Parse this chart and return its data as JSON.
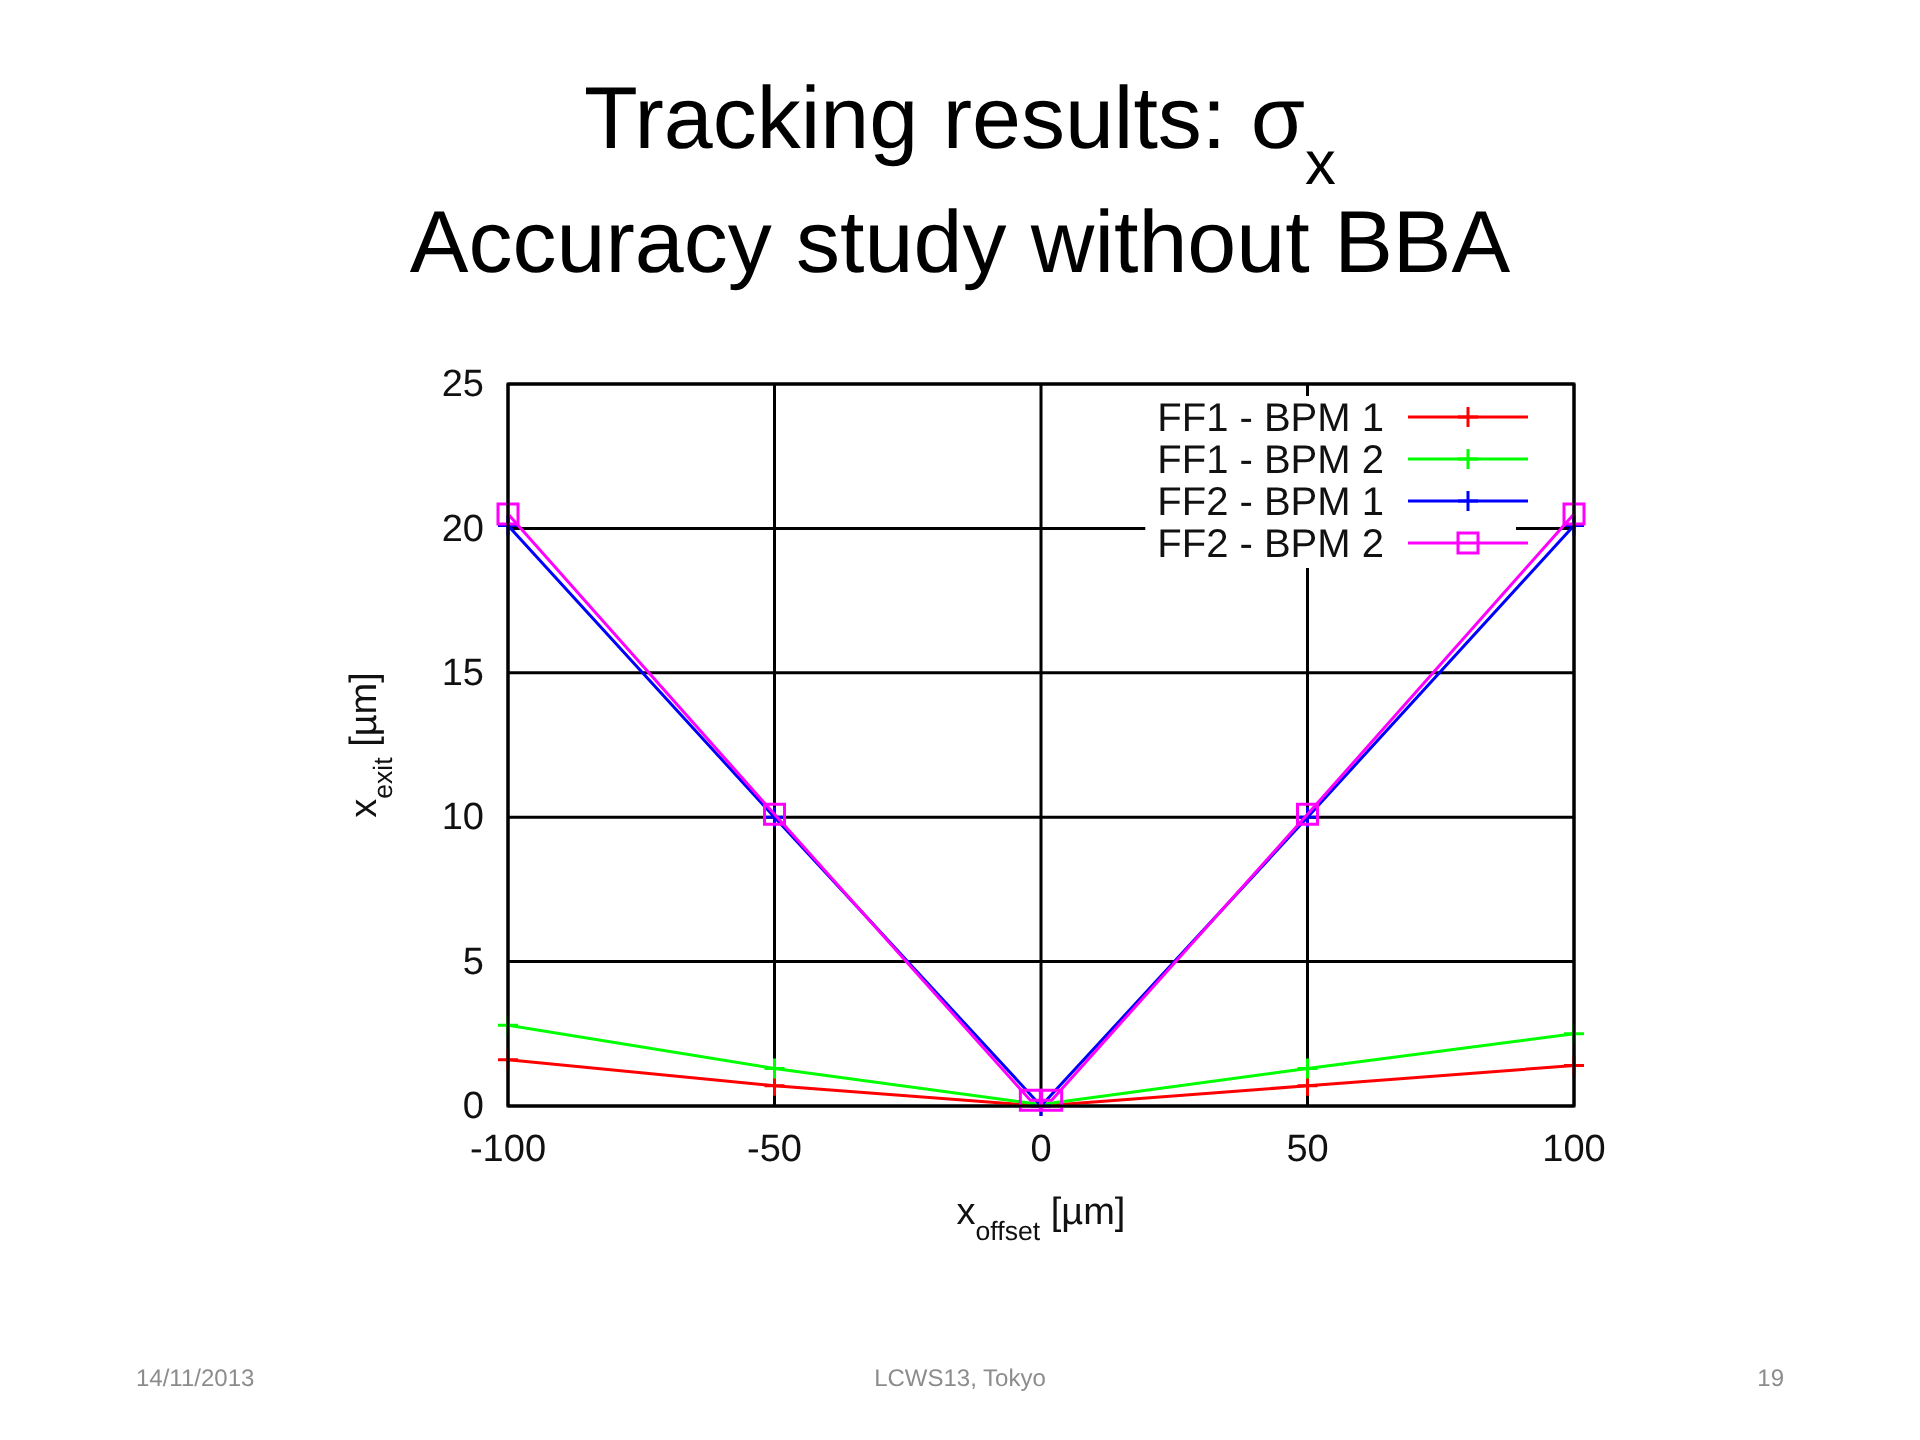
{
  "chart_data": {
    "type": "line",
    "title": "Tracking results: σ$_{x}$",
    "subtitle": "Accuracy study without BBA",
    "xlabel": "x$_{offset}$ [µm]",
    "ylabel": "x$_{exit}$ [µm]",
    "x": [
      -100,
      -50,
      0,
      50,
      100
    ],
    "series": [
      {
        "name": "FF1 - BPM 1",
        "color": "#ff0000",
        "marker": "cross",
        "values": [
          1.6,
          0.7,
          0,
          0.7,
          1.4
        ]
      },
      {
        "name": "FF1 - BPM 2",
        "color": "#00ff00",
        "marker": "cross",
        "values": [
          2.8,
          1.3,
          0.05,
          1.3,
          2.5
        ]
      },
      {
        "name": "FF2 - BPM 1",
        "color": "#0000ff",
        "marker": "cross",
        "values": [
          20.1,
          10,
          0,
          10,
          20.1
        ]
      },
      {
        "name": "FF2 - BPM 2",
        "color": "#ff00ff",
        "marker": "square",
        "x": [
          -100,
          -50,
          -2,
          2,
          50,
          100
        ],
        "values": [
          20.5,
          10.1,
          0.2,
          0.2,
          10.1,
          20.5
        ]
      }
    ],
    "xlim": [
      -100,
      100
    ],
    "ylim": [
      0,
      25
    ],
    "xticks": [
      -100,
      -50,
      0,
      50,
      100
    ],
    "yticks": [
      0,
      5,
      10,
      15,
      20,
      25
    ],
    "grid": true,
    "legend": "top right",
    "annotations": [
      "14/11/2013",
      "LCWS13, Tokyo",
      "19"
    ]
  }
}
